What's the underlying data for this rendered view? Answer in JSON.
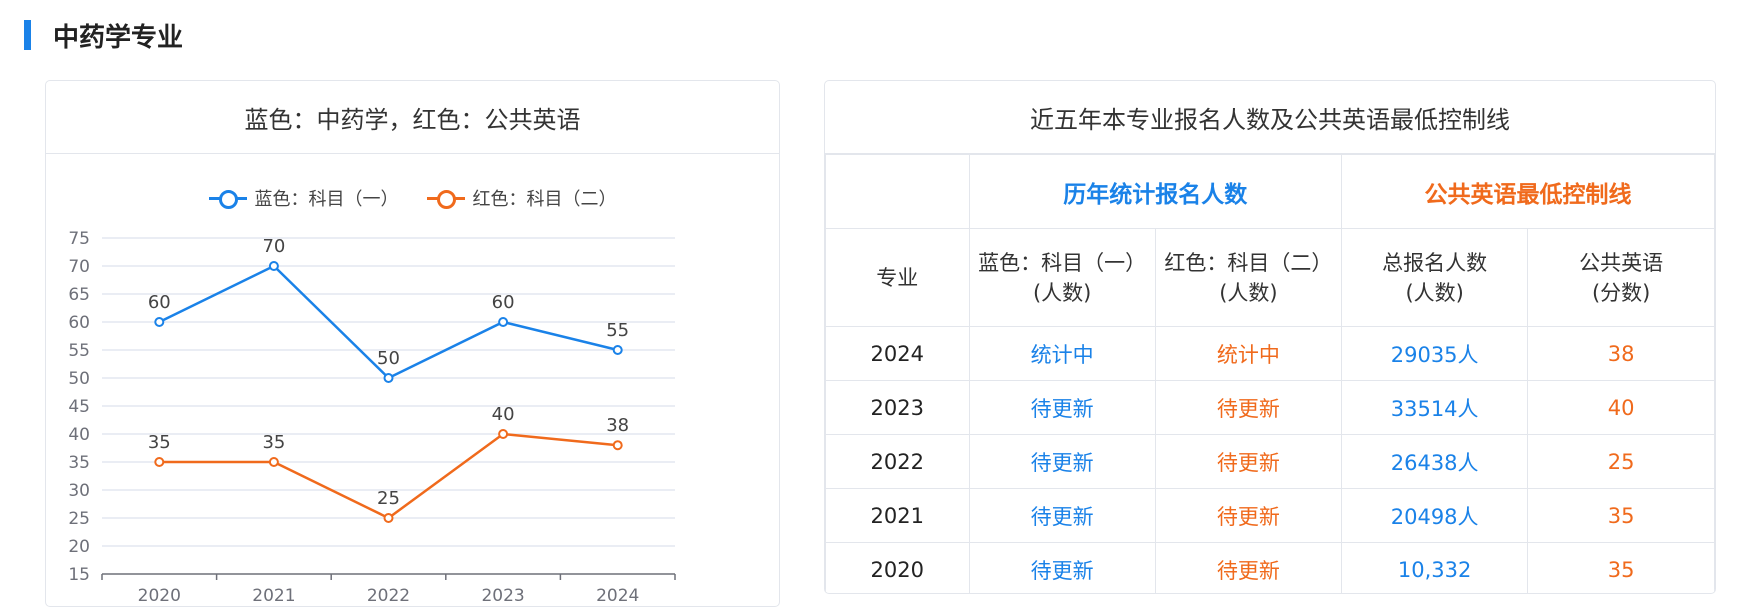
{
  "section": {
    "title": "中药学专业"
  },
  "chart_card": {
    "title": "蓝色：中药学，红色：公共英语",
    "legend": [
      {
        "name": "蓝色：科目（一）",
        "color": "#1a82e8"
      },
      {
        "name": "红色：科目（二）",
        "color": "#f06a1c"
      }
    ]
  },
  "chart_data": {
    "type": "line",
    "title": "蓝色：中药学，红色：公共英语",
    "categories": [
      "2020",
      "2021",
      "2022",
      "2023",
      "2024"
    ],
    "series": [
      {
        "name": "蓝色：科目（一）",
        "color": "#1a82e8",
        "values": [
          60,
          70,
          50,
          60,
          55
        ]
      },
      {
        "name": "红色：科目（二）",
        "color": "#f06a1c",
        "values": [
          35,
          35,
          25,
          40,
          38
        ]
      }
    ],
    "ylim": [
      15,
      75
    ],
    "yticks": [
      15,
      20,
      25,
      30,
      35,
      40,
      45,
      50,
      55,
      60,
      65,
      70,
      75
    ],
    "xlabel": "",
    "ylabel": "",
    "grid": true,
    "legend": "top-center"
  },
  "table_card": {
    "title": "近五年本专业报名人数及公共英语最低控制线",
    "group_headers": {
      "left": "历年统计报名人数",
      "right": "公共英语最低控制线"
    },
    "columns": {
      "major": "专业",
      "subject1": [
        "蓝色：科目（一）",
        "(人数)"
      ],
      "subject2": [
        "红色：科目（二）",
        "(人数)"
      ],
      "total": [
        "总报名人数",
        "(人数)"
      ],
      "english": [
        "公共英语",
        "(分数)"
      ]
    },
    "rows": [
      {
        "year": "2024",
        "s1": "统计中",
        "s2": "统计中",
        "total": "29035人",
        "english": "38"
      },
      {
        "year": "2023",
        "s1": "待更新",
        "s2": "待更新",
        "total": "33514人",
        "english": "40"
      },
      {
        "year": "2022",
        "s1": "待更新",
        "s2": "待更新",
        "total": "26438人",
        "english": "25"
      },
      {
        "year": "2021",
        "s1": "待更新",
        "s2": "待更新",
        "total": "20498人",
        "english": "35"
      },
      {
        "year": "2020",
        "s1": "待更新",
        "s2": "待更新",
        "total": "10,332",
        "english": "35"
      }
    ]
  }
}
